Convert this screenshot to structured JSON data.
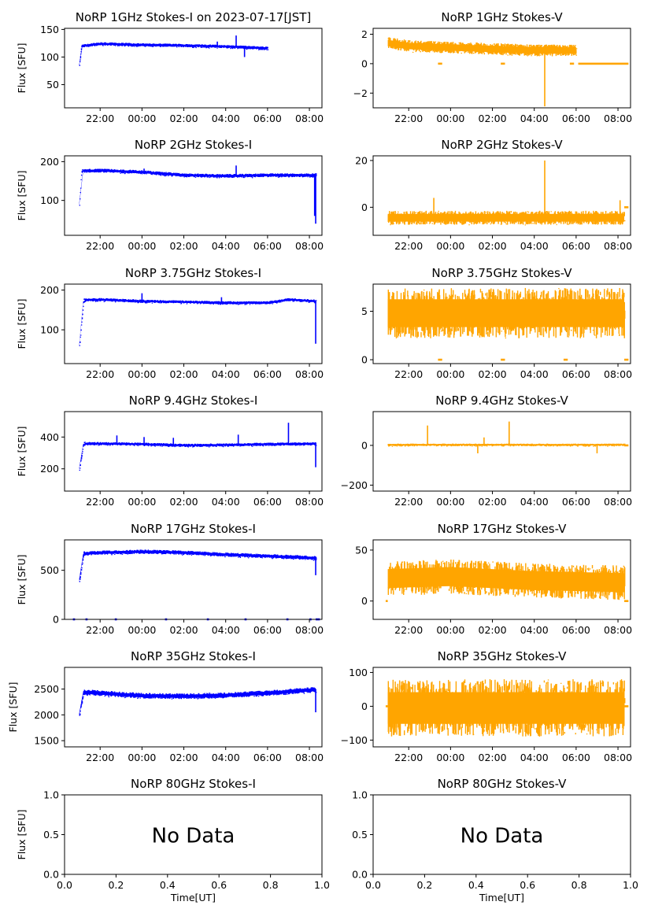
{
  "figure": {
    "title_prefix": "",
    "date_title": "NoRP 1GHz Stokes-I on 2023-07-17[JST]",
    "ylabel": "Flux [SFU]",
    "xlabel": "Time[UT]",
    "no_data_text": "No Data",
    "time_ticks": [
      "22:00",
      "00:00",
      "02:00",
      "04:00",
      "06:00",
      "08:00"
    ],
    "colors": {
      "stokes_i": "#0000ff",
      "stokes_v": "#ffa500"
    }
  },
  "chart_data": [
    {
      "type": "scatter",
      "panel": "1GHz Stokes-I",
      "title": "NoRP 1GHz Stokes-I on 2023-07-17[JST]",
      "ylabel": "Flux [SFU]",
      "x_range_hours": [
        20.3,
        32.6
      ],
      "ylim": [
        8,
        152
      ],
      "yticks": [
        50,
        100,
        150
      ],
      "data_end_hour": 30.0,
      "baseline": [
        [
          21.0,
          85
        ],
        [
          21.1,
          120
        ],
        [
          22.0,
          124
        ],
        [
          24.0,
          122
        ],
        [
          26.0,
          121
        ],
        [
          28.0,
          119
        ],
        [
          30.0,
          116
        ]
      ],
      "band": 3,
      "spikes": [
        [
          27.6,
          128
        ],
        [
          28.5,
          139
        ],
        [
          28.9,
          100
        ]
      ]
    },
    {
      "type": "scatter",
      "panel": "1GHz Stokes-V",
      "title": "NoRP 1GHz Stokes-V",
      "ylabel": "",
      "x_range_hours": [
        20.3,
        32.6
      ],
      "ylim": [
        -3.0,
        2.4
      ],
      "yticks": [
        -2,
        0,
        2
      ],
      "data_end_hour": 30.0,
      "baseline": [
        [
          21.0,
          1.4
        ],
        [
          22.0,
          1.2
        ],
        [
          24.0,
          1.1
        ],
        [
          26.0,
          1.0
        ],
        [
          28.0,
          0.9
        ],
        [
          30.0,
          0.9
        ]
      ],
      "band": 0.4,
      "spikes": [
        [
          28.5,
          -2.9
        ]
      ],
      "flat_segments": [
        [
          23.4,
          23.6,
          0.0
        ],
        [
          26.4,
          26.6,
          0.0
        ],
        [
          29.7,
          29.9,
          0.0
        ],
        [
          30.1,
          32.5,
          0.0
        ]
      ]
    },
    {
      "type": "scatter",
      "panel": "2GHz Stokes-I",
      "title": "NoRP 2GHz Stokes-I",
      "ylabel": "Flux [SFU]",
      "x_range_hours": [
        20.3,
        32.6
      ],
      "ylim": [
        10,
        215
      ],
      "yticks": [
        100,
        200
      ],
      "data_end_hour": 32.3,
      "baseline": [
        [
          21.0,
          90
        ],
        [
          21.1,
          176
        ],
        [
          22.0,
          177
        ],
        [
          24.0,
          173
        ],
        [
          26.0,
          165
        ],
        [
          28.0,
          163
        ],
        [
          30.0,
          165
        ],
        [
          32.3,
          165
        ]
      ],
      "band": 5,
      "spikes": [
        [
          28.5,
          190
        ],
        [
          24.1,
          182
        ],
        [
          32.3,
          40
        ],
        [
          32.25,
          60
        ]
      ]
    },
    {
      "type": "scatter",
      "panel": "2GHz Stokes-V",
      "title": "NoRP 2GHz Stokes-V",
      "ylabel": "",
      "x_range_hours": [
        20.3,
        32.6
      ],
      "ylim": [
        -12,
        22
      ],
      "yticks": [
        0,
        20
      ],
      "data_end_hour": 32.3,
      "baseline": [
        [
          21.0,
          -4.5
        ],
        [
          32.3,
          -4.5
        ]
      ],
      "band": 3,
      "spikes": [
        [
          28.5,
          20
        ],
        [
          23.2,
          4
        ],
        [
          32.1,
          3
        ]
      ],
      "flat_segments": [
        [
          32.3,
          32.5,
          0.0
        ]
      ]
    },
    {
      "type": "scatter",
      "panel": "3.75GHz Stokes-I",
      "title": "NoRP 3.75GHz Stokes-I",
      "ylabel": "Flux [SFU]",
      "x_range_hours": [
        20.3,
        32.6
      ],
      "ylim": [
        15,
        215
      ],
      "yticks": [
        100,
        200
      ],
      "data_end_hour": 32.3,
      "baseline": [
        [
          21.0,
          60
        ],
        [
          21.2,
          175
        ],
        [
          22.0,
          176
        ],
        [
          24.0,
          172
        ],
        [
          26.0,
          170
        ],
        [
          28.0,
          168
        ],
        [
          30.0,
          168
        ],
        [
          31.0,
          176
        ],
        [
          32.3,
          172
        ]
      ],
      "band": 4,
      "spikes": [
        [
          24.0,
          192
        ],
        [
          27.8,
          182
        ],
        [
          32.3,
          65
        ]
      ]
    },
    {
      "type": "scatter",
      "panel": "3.75GHz Stokes-V",
      "title": "NoRP 3.75GHz Stokes-V",
      "ylabel": "",
      "x_range_hours": [
        20.3,
        32.6
      ],
      "ylim": [
        -0.4,
        7.8
      ],
      "yticks": [
        0,
        5
      ],
      "data_end_hour": 32.3,
      "baseline": [
        [
          21.0,
          4.8
        ],
        [
          32.3,
          4.8
        ]
      ],
      "band": 2.6,
      "spikes": [],
      "flat_segments": [
        [
          23.4,
          23.6,
          0.0
        ],
        [
          26.4,
          26.6,
          0.0
        ],
        [
          29.4,
          29.6,
          0.0
        ],
        [
          32.3,
          32.5,
          0.0
        ]
      ]
    },
    {
      "type": "scatter",
      "panel": "9.4GHz Stokes-I",
      "title": "NoRP 9.4GHz Stokes-I",
      "ylabel": "Flux [SFU]",
      "x_range_hours": [
        20.3,
        32.6
      ],
      "ylim": [
        60,
        560
      ],
      "yticks": [
        200,
        400
      ],
      "data_end_hour": 32.3,
      "baseline": [
        [
          21.0,
          200
        ],
        [
          21.2,
          360
        ],
        [
          24.0,
          355
        ],
        [
          26.0,
          348
        ],
        [
          28.0,
          350
        ],
        [
          30.0,
          355
        ],
        [
          32.3,
          358
        ]
      ],
      "band": 10,
      "spikes": [
        [
          22.8,
          410
        ],
        [
          24.1,
          400
        ],
        [
          25.5,
          395
        ],
        [
          28.6,
          415
        ],
        [
          31.0,
          490
        ],
        [
          32.3,
          210
        ]
      ]
    },
    {
      "type": "scatter",
      "panel": "9.4GHz Stokes-V",
      "title": "NoRP 9.4GHz Stokes-V",
      "ylabel": "",
      "x_range_hours": [
        20.3,
        32.6
      ],
      "ylim": [
        -230,
        170
      ],
      "yticks": [
        -200,
        0
      ],
      "data_end_hour": 32.3,
      "baseline": [
        [
          21.0,
          3
        ],
        [
          32.3,
          3
        ]
      ],
      "band": 6,
      "spikes": [
        [
          22.9,
          100
        ],
        [
          25.3,
          -40
        ],
        [
          25.6,
          40
        ],
        [
          31.0,
          -40
        ],
        [
          26.8,
          120
        ]
      ],
      "flat_segments": [
        [
          32.3,
          32.5,
          0.0
        ]
      ]
    },
    {
      "type": "scatter",
      "panel": "17GHz Stokes-I",
      "title": "NoRP 17GHz Stokes-I",
      "ylabel": "Flux [SFU]",
      "x_range_hours": [
        20.3,
        32.6
      ],
      "ylim": [
        0,
        810
      ],
      "yticks": [
        0,
        500
      ],
      "data_end_hour": 32.3,
      "baseline": [
        [
          21.0,
          400
        ],
        [
          21.2,
          670
        ],
        [
          22.0,
          680
        ],
        [
          24.0,
          690
        ],
        [
          26.0,
          680
        ],
        [
          28.0,
          660
        ],
        [
          30.0,
          645
        ],
        [
          32.3,
          625
        ]
      ],
      "band": 22,
      "spikes": [
        [
          32.3,
          450
        ]
      ],
      "flat_segments": [
        [
          20.7,
          20.8,
          0
        ],
        [
          21.3,
          21.4,
          0
        ],
        [
          22.7,
          22.8,
          0
        ],
        [
          25.1,
          25.2,
          0
        ],
        [
          27.1,
          27.2,
          0
        ],
        [
          28.9,
          29.0,
          0
        ],
        [
          30.9,
          31.0,
          0
        ],
        [
          32.0,
          32.1,
          0
        ],
        [
          32.3,
          32.5,
          0
        ]
      ]
    },
    {
      "type": "scatter",
      "panel": "17GHz Stokes-V",
      "title": "NoRP 17GHz Stokes-V",
      "ylabel": "",
      "x_range_hours": [
        20.3,
        32.6
      ],
      "ylim": [
        -18,
        60
      ],
      "yticks": [
        0,
        50
      ],
      "data_end_hour": 32.3,
      "baseline": [
        [
          21.0,
          22
        ],
        [
          24.0,
          24
        ],
        [
          28.0,
          20
        ],
        [
          32.3,
          18
        ]
      ],
      "band": 17,
      "spikes": [],
      "flat_segments": [
        [
          20.9,
          21.0,
          0.0
        ],
        [
          32.3,
          32.5,
          0.0
        ]
      ]
    },
    {
      "type": "scatter",
      "panel": "35GHz Stokes-I",
      "title": "NoRP 35GHz Stokes-I",
      "ylabel": "Flux [SFU]",
      "x_range_hours": [
        20.3,
        32.6
      ],
      "ylim": [
        1380,
        2920
      ],
      "yticks": [
        1500,
        2000,
        2500
      ],
      "data_end_hour": 32.3,
      "baseline": [
        [
          21.0,
          2000
        ],
        [
          21.2,
          2440
        ],
        [
          22.0,
          2420
        ],
        [
          24.0,
          2370
        ],
        [
          26.0,
          2360
        ],
        [
          28.0,
          2380
        ],
        [
          30.0,
          2420
        ],
        [
          32.3,
          2490
        ]
      ],
      "band": 55,
      "spikes": [
        [
          32.3,
          2050
        ]
      ]
    },
    {
      "type": "scatter",
      "panel": "35GHz Stokes-V",
      "title": "NoRP 35GHz Stokes-V",
      "ylabel": "",
      "x_range_hours": [
        20.3,
        32.6
      ],
      "ylim": [
        -120,
        115
      ],
      "yticks": [
        -100,
        0,
        100
      ],
      "data_end_hour": 32.3,
      "baseline": [
        [
          21.0,
          -5
        ],
        [
          32.3,
          -5
        ]
      ],
      "band": 85,
      "spikes": [],
      "flat_segments": [
        [
          20.9,
          21.0,
          0.0
        ],
        [
          32.3,
          32.5,
          0.0
        ]
      ]
    },
    {
      "type": "scatter",
      "panel": "80GHz Stokes-I",
      "title": "NoRP 80GHz Stokes-I",
      "ylabel": "Flux [SFU]",
      "xlabel": "Time[UT]",
      "no_data": true,
      "xlim": [
        0,
        1
      ],
      "ylim": [
        0,
        1
      ],
      "xticks": [
        0.0,
        0.2,
        0.4,
        0.6,
        0.8,
        1.0
      ],
      "yticks": [
        0.0,
        0.5,
        1.0
      ]
    },
    {
      "type": "scatter",
      "panel": "80GHz Stokes-V",
      "title": "NoRP 80GHz Stokes-V",
      "ylabel": "",
      "xlabel": "Time[UT]",
      "no_data": true,
      "xlim": [
        0,
        1
      ],
      "ylim": [
        0,
        1
      ],
      "xticks": [
        0.0,
        0.2,
        0.4,
        0.6,
        0.8,
        1.0
      ],
      "yticks": [
        0.0,
        0.5,
        1.0
      ]
    }
  ]
}
